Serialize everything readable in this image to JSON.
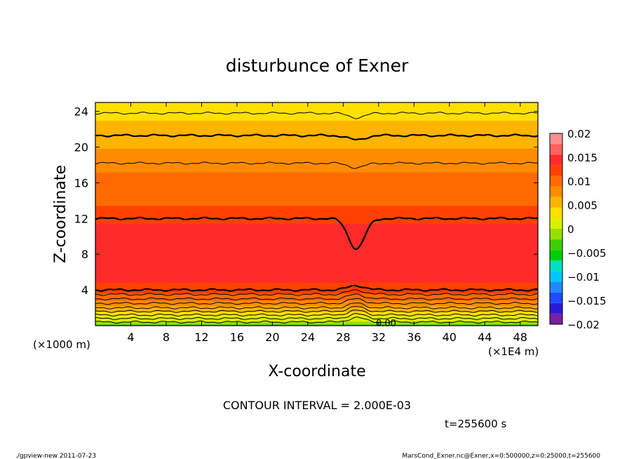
{
  "chart_data": {
    "type": "heatmap",
    "title": "disturbunce of Exner",
    "xlabel": "X-coordinate",
    "ylabel": "Z-coordinate",
    "x_unit_left": "(×1000 m)",
    "x_unit_right": "(×1E4 m)",
    "xlim": [
      0,
      50
    ],
    "ylim": [
      0,
      25
    ],
    "xticks": [
      4,
      8,
      12,
      16,
      20,
      24,
      28,
      32,
      36,
      40,
      44,
      48
    ],
    "yticks": [
      4,
      8,
      12,
      16,
      20,
      24
    ],
    "xtick_labels": [
      "4",
      "8",
      "12",
      "16",
      "20",
      "24",
      "28",
      "32",
      "36",
      "40",
      "44",
      "48"
    ],
    "ytick_labels": [
      "4",
      "8",
      "12",
      "16",
      "20",
      "24"
    ],
    "contour_interval_text": "CONTOUR INTERVAL = 2.000E-03",
    "time_text": "t=255600 s",
    "zero_label": "0.00",
    "colorbar": {
      "range": [
        -0.02,
        0.02
      ],
      "tick_values": [
        0.02,
        0.015,
        0.01,
        0.005,
        0,
        -0.005,
        -0.01,
        -0.015,
        -0.02
      ],
      "tick_labels": [
        "0.02",
        "0.015",
        "0.01",
        "0.005",
        "0",
        "−0.005",
        "−0.01",
        "−0.015",
        "−0.02"
      ],
      "colors": [
        "#7a1fa0",
        "#2c1ad8",
        "#1f4bff",
        "#1f8aff",
        "#00c8ff",
        "#00e0c0",
        "#00d000",
        "#3ed000",
        "#96e000",
        "#d8f000",
        "#ffe000",
        "#ffb400",
        "#ff8c00",
        "#ff6a00",
        "#ff4000",
        "#ff2a2a",
        "#ff6060",
        "#ff9090"
      ]
    },
    "z_profile": {
      "z": [
        0,
        0.5,
        1,
        1.5,
        2,
        2.5,
        3,
        3.5,
        4,
        5,
        6,
        7,
        8,
        9,
        10,
        11,
        12,
        13,
        14,
        15,
        16,
        17,
        18,
        19,
        20,
        21,
        22,
        23,
        24,
        25
      ],
      "value": [
        -0.003,
        0.0,
        0.002,
        0.004,
        0.006,
        0.008,
        0.0095,
        0.0108,
        0.0122,
        0.0135,
        0.0142,
        0.0148,
        0.015,
        0.015,
        0.0146,
        0.0138,
        0.0126,
        0.0116,
        0.0106,
        0.01,
        0.0096,
        0.009,
        0.0082,
        0.0074,
        0.0066,
        0.0058,
        0.005,
        0.0044,
        0.0038,
        0.0032
      ]
    },
    "contours": [
      {
        "z": 0.4
      },
      {
        "z": 0.8
      },
      {
        "z": 1.2
      },
      {
        "z": 1.6
      },
      {
        "z": 2.0
      },
      {
        "z": 2.5
      },
      {
        "z": 3.0
      },
      {
        "z": 3.5
      },
      {
        "z": 4.0,
        "bold": true
      },
      {
        "z": 12.0,
        "bold": true
      },
      {
        "z": 18.2
      },
      {
        "z": 21.3,
        "bold": true
      },
      {
        "z": 23.8
      }
    ],
    "dip_x": 29.5
  },
  "footer": {
    "left": "./gpview-new   2011-07-23",
    "right": "MarsCond_Exner.nc@Exner,x=0:500000,z=0:25000,t=255600"
  }
}
